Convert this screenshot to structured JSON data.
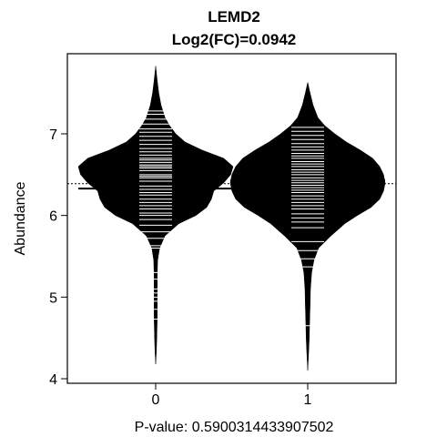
{
  "chart_data": {
    "type": "beanplot",
    "title": "LEMD2",
    "subtitle": "Log2(FC)=0.0942",
    "xlabel": "P-value: 0.5900314433907502",
    "ylabel": "Abundance",
    "ylim": [
      4.0,
      7.8
    ],
    "yticks": [
      4,
      5,
      6,
      7
    ],
    "ytick_labels": [
      "4",
      "5",
      "6",
      "7"
    ],
    "categories": [
      "0",
      "1"
    ],
    "overall_mean": 6.39,
    "groups": [
      {
        "label": "0",
        "mean": 6.33,
        "density": [
          [
            4.18,
            0.0
          ],
          [
            4.35,
            0.01
          ],
          [
            4.55,
            0.015
          ],
          [
            4.75,
            0.02
          ],
          [
            5.0,
            0.02
          ],
          [
            5.25,
            0.02
          ],
          [
            5.45,
            0.025
          ],
          [
            5.6,
            0.05
          ],
          [
            5.75,
            0.12
          ],
          [
            5.9,
            0.3
          ],
          [
            6.0,
            0.52
          ],
          [
            6.1,
            0.66
          ],
          [
            6.2,
            0.72
          ],
          [
            6.3,
            0.75
          ],
          [
            6.4,
            0.88
          ],
          [
            6.5,
            0.97
          ],
          [
            6.6,
            1.0
          ],
          [
            6.7,
            0.88
          ],
          [
            6.8,
            0.6
          ],
          [
            6.9,
            0.38
          ],
          [
            7.0,
            0.26
          ],
          [
            7.1,
            0.18
          ],
          [
            7.2,
            0.12
          ],
          [
            7.35,
            0.07
          ],
          [
            7.5,
            0.04
          ],
          [
            7.65,
            0.02
          ],
          [
            7.83,
            0.0
          ]
        ],
        "points": [
          4.73,
          4.85,
          4.95,
          5.0,
          5.05,
          5.1,
          5.22,
          5.3,
          5.6,
          5.63,
          5.72,
          5.8,
          5.88,
          5.95,
          6.0,
          6.03,
          6.08,
          6.12,
          6.16,
          6.2,
          6.25,
          6.28,
          6.32,
          6.36,
          6.42,
          6.46,
          6.48,
          6.5,
          6.55,
          6.58,
          6.6,
          6.62,
          6.65,
          6.68,
          6.7,
          6.74,
          6.78,
          6.82,
          6.87,
          6.92,
          6.97,
          7.02,
          7.06,
          7.12,
          7.18,
          7.24,
          7.28
        ]
      },
      {
        "label": "1",
        "mean": 6.43,
        "density": [
          [
            4.1,
            0.0
          ],
          [
            4.3,
            0.01
          ],
          [
            4.5,
            0.02
          ],
          [
            4.7,
            0.025
          ],
          [
            4.9,
            0.03
          ],
          [
            5.1,
            0.035
          ],
          [
            5.3,
            0.05
          ],
          [
            5.45,
            0.08
          ],
          [
            5.6,
            0.14
          ],
          [
            5.75,
            0.3
          ],
          [
            5.9,
            0.48
          ],
          [
            6.0,
            0.64
          ],
          [
            6.1,
            0.82
          ],
          [
            6.2,
            0.93
          ],
          [
            6.3,
            0.98
          ],
          [
            6.4,
            1.0
          ],
          [
            6.5,
            0.98
          ],
          [
            6.6,
            0.93
          ],
          [
            6.7,
            0.84
          ],
          [
            6.8,
            0.68
          ],
          [
            6.9,
            0.5
          ],
          [
            7.0,
            0.35
          ],
          [
            7.1,
            0.22
          ],
          [
            7.2,
            0.13
          ],
          [
            7.35,
            0.07
          ],
          [
            7.5,
            0.03
          ],
          [
            7.63,
            0.0
          ]
        ],
        "points": [
          4.65,
          5.37,
          5.47,
          5.57,
          5.68,
          5.85,
          5.92,
          5.97,
          6.02,
          6.08,
          6.12,
          6.16,
          6.2,
          6.24,
          6.28,
          6.31,
          6.34,
          6.37,
          6.4,
          6.43,
          6.46,
          6.5,
          6.53,
          6.56,
          6.6,
          6.63,
          6.66,
          6.7,
          6.73,
          6.76,
          6.8,
          6.84,
          6.88,
          6.93,
          6.98,
          7.03,
          7.08
        ]
      }
    ],
    "bean_color": "#000000",
    "line_color": "#ffffff",
    "grid": false
  }
}
